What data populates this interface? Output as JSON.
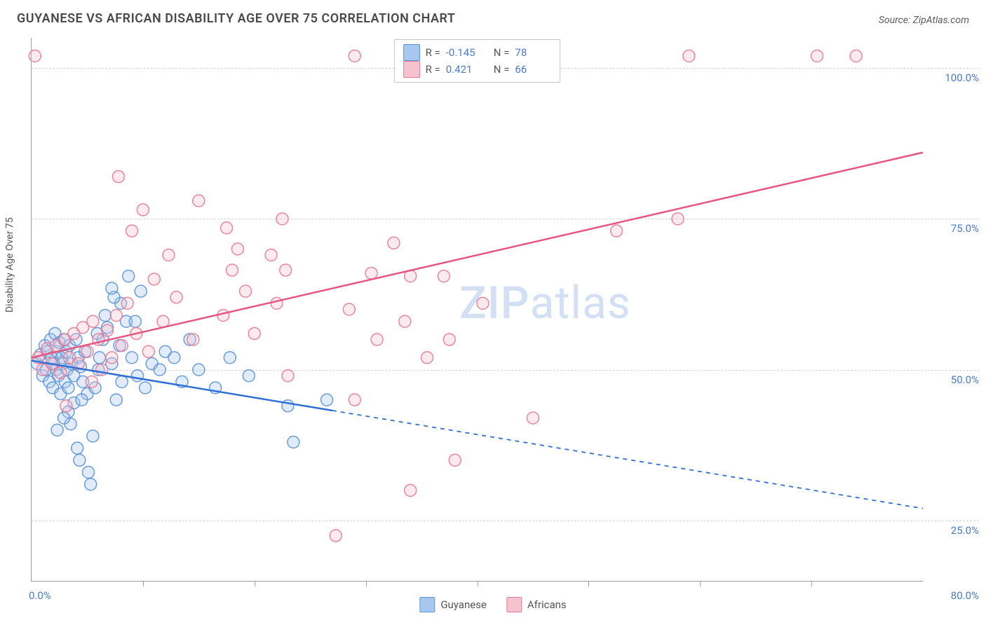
{
  "header": {
    "title": "GUYANESE VS AFRICAN DISABILITY AGE OVER 75 CORRELATION CHART",
    "source": "Source: ZipAtlas.com"
  },
  "chart": {
    "type": "scatter",
    "ylabel": "Disability Age Over 75",
    "watermark": {
      "zip": "ZIP",
      "atlas": "atlas"
    },
    "background_color": "#ffffff",
    "grid_color": "#d0d0d0",
    "axis_color": "#9e9e9e",
    "tick_label_color": "#4a7bd0",
    "xlim": [
      0,
      80
    ],
    "ylim": [
      15,
      105
    ],
    "xtick_positions": [
      10,
      20,
      30,
      40,
      50,
      60,
      70
    ],
    "xaxis_min_label": "0.0%",
    "xaxis_max_label": "80.0%",
    "ygrid": [
      {
        "v": 25,
        "label": "25.0%"
      },
      {
        "v": 50,
        "label": "50.0%"
      },
      {
        "v": 75,
        "label": "75.0%"
      },
      {
        "v": 100,
        "label": "100.0%"
      }
    ],
    "marker_radius": 8.5,
    "series": [
      {
        "id": "guyanese",
        "label": "Guyanese",
        "fill": "#a8c7ef",
        "stroke": "#5a93db",
        "line_color": "#2f6fd6",
        "line_solid_until_x": 27,
        "r_value": "-0.145",
        "n_value": "78",
        "trend": {
          "x1": 0,
          "y1": 51.5,
          "x2": 80,
          "y2": 27
        },
        "points": [
          [
            0.5,
            51
          ],
          [
            0.8,
            52.5
          ],
          [
            1.0,
            49
          ],
          [
            1.2,
            54
          ],
          [
            1.3,
            50
          ],
          [
            1.4,
            53
          ],
          [
            1.6,
            48
          ],
          [
            1.7,
            55
          ],
          [
            1.8,
            52
          ],
          [
            1.9,
            47
          ],
          [
            2.0,
            51
          ],
          [
            2.1,
            56
          ],
          [
            2.2,
            50
          ],
          [
            2.3,
            53
          ],
          [
            2.4,
            49
          ],
          [
            2.5,
            54.5
          ],
          [
            2.6,
            46
          ],
          [
            2.7,
            52
          ],
          [
            2.8,
            51
          ],
          [
            2.9,
            55
          ],
          [
            3.0,
            48
          ],
          [
            3.1,
            53
          ],
          [
            3.2,
            50
          ],
          [
            3.3,
            47
          ],
          [
            3.4,
            54
          ],
          [
            3.6,
            51
          ],
          [
            3.8,
            49
          ],
          [
            4.0,
            55
          ],
          [
            4.2,
            52
          ],
          [
            4.4,
            50.5
          ],
          [
            4.6,
            48
          ],
          [
            4.8,
            53
          ],
          [
            5.0,
            46
          ],
          [
            3.5,
            41
          ],
          [
            4.1,
            37
          ],
          [
            4.3,
            35
          ],
          [
            5.1,
            33
          ],
          [
            5.3,
            31
          ],
          [
            5.5,
            39
          ],
          [
            3.3,
            43
          ],
          [
            3.8,
            44.5
          ],
          [
            2.9,
            42
          ],
          [
            2.3,
            40
          ],
          [
            4.5,
            45
          ],
          [
            5.7,
            47
          ],
          [
            6.1,
            52
          ],
          [
            6.4,
            55
          ],
          [
            6.8,
            57
          ],
          [
            6.0,
            50
          ],
          [
            7.2,
            51
          ],
          [
            7.6,
            45
          ],
          [
            8.1,
            48
          ],
          [
            8.5,
            58
          ],
          [
            8.0,
            61
          ],
          [
            7.4,
            62
          ],
          [
            6.6,
            59
          ],
          [
            5.9,
            56
          ],
          [
            7.9,
            54
          ],
          [
            9.0,
            52
          ],
          [
            9.5,
            49
          ],
          [
            10.2,
            47
          ],
          [
            10.8,
            51
          ],
          [
            11.5,
            50
          ],
          [
            12.0,
            53
          ],
          [
            9.3,
            58
          ],
          [
            9.8,
            63
          ],
          [
            8.7,
            65.5
          ],
          [
            7.2,
            63.5
          ],
          [
            12.8,
            52
          ],
          [
            13.5,
            48
          ],
          [
            14.2,
            55
          ],
          [
            15.0,
            50
          ],
          [
            16.5,
            47
          ],
          [
            17.8,
            52
          ],
          [
            19.5,
            49
          ],
          [
            23.0,
            44
          ],
          [
            23.5,
            38
          ],
          [
            26.5,
            45
          ]
        ]
      },
      {
        "id": "africans",
        "label": "Africans",
        "fill": "#f4c3cd",
        "stroke": "#e97a95",
        "line_color": "#e75480",
        "line_solid_until_x": 80,
        "r_value": "0.421",
        "n_value": "66",
        "trend": {
          "x1": 0,
          "y1": 52,
          "x2": 80,
          "y2": 86
        },
        "points": [
          [
            0.6,
            52
          ],
          [
            1.0,
            50
          ],
          [
            1.4,
            53.5
          ],
          [
            1.8,
            51
          ],
          [
            2.2,
            54
          ],
          [
            2.6,
            49.5
          ],
          [
            3.0,
            55
          ],
          [
            3.4,
            52
          ],
          [
            3.8,
            56
          ],
          [
            4.2,
            51
          ],
          [
            4.6,
            57
          ],
          [
            5.0,
            53
          ],
          [
            5.5,
            58
          ],
          [
            5.4,
            48
          ],
          [
            6.0,
            55
          ],
          [
            6.3,
            50
          ],
          [
            6.8,
            56.5
          ],
          [
            7.2,
            52
          ],
          [
            7.6,
            59
          ],
          [
            8.1,
            54
          ],
          [
            8.6,
            61
          ],
          [
            9.0,
            73
          ],
          [
            9.4,
            56
          ],
          [
            10.0,
            76.5
          ],
          [
            10.5,
            53
          ],
          [
            11.0,
            65
          ],
          [
            11.8,
            58
          ],
          [
            12.3,
            69
          ],
          [
            13.0,
            62
          ],
          [
            14.5,
            55
          ],
          [
            15.0,
            78
          ],
          [
            17.2,
            59
          ],
          [
            17.5,
            73.5
          ],
          [
            18.0,
            66.5
          ],
          [
            18.5,
            70
          ],
          [
            19.2,
            63
          ],
          [
            20.0,
            56
          ],
          [
            21.5,
            69
          ],
          [
            22.0,
            61
          ],
          [
            22.5,
            75
          ],
          [
            22.8,
            66.5
          ],
          [
            23.0,
            49
          ],
          [
            29.0,
            102
          ],
          [
            27.3,
            22.5
          ],
          [
            28.5,
            60
          ],
          [
            29.0,
            45
          ],
          [
            30.5,
            66
          ],
          [
            31.0,
            55
          ],
          [
            32.5,
            71
          ],
          [
            33.5,
            58
          ],
          [
            34.0,
            65.5
          ],
          [
            35.5,
            52
          ],
          [
            37.0,
            65.5
          ],
          [
            37.5,
            55
          ],
          [
            38.0,
            35
          ],
          [
            40.5,
            61
          ],
          [
            34.0,
            30
          ],
          [
            45.0,
            42
          ],
          [
            52.5,
            73
          ],
          [
            59.0,
            102
          ],
          [
            58.0,
            75
          ],
          [
            70.5,
            102
          ],
          [
            74.0,
            102
          ],
          [
            0.3,
            102
          ],
          [
            7.8,
            82
          ],
          [
            3.1,
            44
          ]
        ]
      }
    ],
    "legend_top": {
      "border_color": "#c8c8c8",
      "r_label": "R =",
      "n_label": "N ="
    }
  }
}
